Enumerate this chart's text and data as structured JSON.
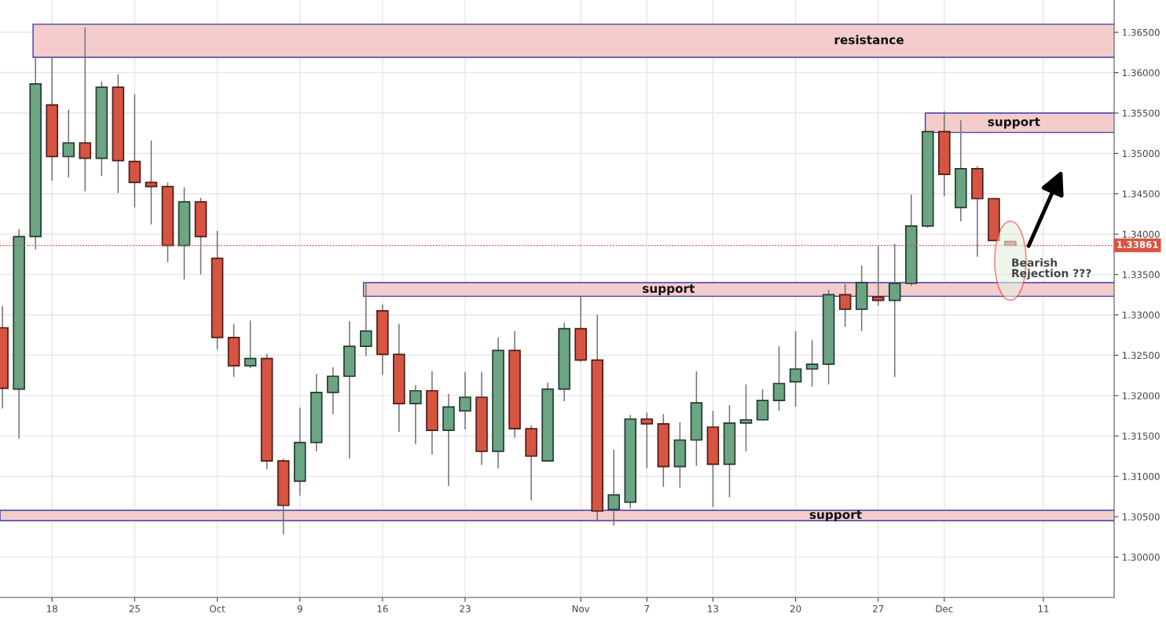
{
  "chart_data": {
    "type": "candlestick",
    "categories": [
      null,
      null,
      null,
      "18",
      null,
      null,
      null,
      null,
      "25",
      null,
      null,
      null,
      null,
      "Oct",
      null,
      null,
      null,
      null,
      "9",
      null,
      null,
      null,
      null,
      "16",
      null,
      null,
      null,
      null,
      "23",
      null,
      null,
      null,
      null,
      null,
      null,
      "Nov",
      null,
      null,
      null,
      "7",
      null,
      null,
      null,
      "13",
      null,
      null,
      null,
      null,
      "20",
      null,
      null,
      null,
      null,
      "27",
      null,
      null,
      null,
      "Dec",
      null,
      null,
      null,
      null,
      null,
      "11",
      null,
      null,
      null,
      null
    ],
    "ohlc": [
      [
        1.3284,
        1.3311,
        1.3184,
        1.3209
      ],
      [
        1.3208,
        1.3406,
        1.3147,
        1.3397
      ],
      [
        1.3397,
        1.3619,
        1.3381,
        1.3586
      ],
      [
        1.356,
        1.362,
        1.3466,
        1.3496
      ],
      [
        1.3496,
        1.3554,
        1.347,
        1.3513
      ],
      [
        1.3513,
        1.3656,
        1.3453,
        1.3494
      ],
      [
        1.3494,
        1.3589,
        1.3472,
        1.3582
      ],
      [
        1.3582,
        1.3598,
        1.3451,
        1.3491
      ],
      [
        1.349,
        1.3573,
        1.3433,
        1.3464
      ],
      [
        1.3464,
        1.3516,
        1.3412,
        1.3459
      ],
      [
        1.3459,
        1.3464,
        1.3365,
        1.3386
      ],
      [
        1.3386,
        1.3458,
        1.3344,
        1.344
      ],
      [
        1.344,
        1.3445,
        1.335,
        1.3397
      ],
      [
        1.337,
        1.3404,
        1.3257,
        1.3272
      ],
      [
        1.3272,
        1.3289,
        1.3223,
        1.3237
      ],
      [
        1.3237,
        1.3293,
        1.3234,
        1.3246
      ],
      [
        1.3246,
        1.3252,
        1.3109,
        1.3119
      ],
      [
        1.3119,
        1.3122,
        1.3028,
        1.3064
      ],
      [
        1.3094,
        1.3185,
        1.3076,
        1.3142
      ],
      [
        1.3142,
        1.3227,
        1.3131,
        1.3204
      ],
      [
        1.3204,
        1.3235,
        1.3177,
        1.3224
      ],
      [
        1.3224,
        1.3292,
        1.3122,
        1.3261
      ],
      [
        1.3261,
        1.334,
        1.3249,
        1.328
      ],
      [
        1.3305,
        1.3313,
        1.3226,
        1.3251
      ],
      [
        1.3251,
        1.3289,
        1.3155,
        1.319
      ],
      [
        1.319,
        1.3213,
        1.314,
        1.3206
      ],
      [
        1.3206,
        1.323,
        1.3127,
        1.3157
      ],
      [
        1.3157,
        1.3202,
        1.3088,
        1.3186
      ],
      [
        1.3181,
        1.3229,
        1.3158,
        1.3198
      ],
      [
        1.3198,
        1.3229,
        1.3114,
        1.3131
      ],
      [
        1.3131,
        1.3272,
        1.311,
        1.3256
      ],
      [
        1.3256,
        1.328,
        1.3148,
        1.3159
      ],
      [
        1.3159,
        1.3163,
        1.307,
        1.3125
      ],
      [
        1.3119,
        1.3216,
        1.3119,
        1.3208
      ],
      [
        1.3208,
        1.329,
        1.3193,
        1.3283
      ],
      [
        1.3283,
        1.3323,
        1.3242,
        1.3244
      ],
      [
        1.3244,
        1.33,
        1.3044,
        1.3057
      ],
      [
        1.3059,
        1.3133,
        1.3039,
        1.3077
      ],
      [
        1.3068,
        1.3176,
        1.306,
        1.3171
      ],
      [
        1.3171,
        1.3179,
        1.311,
        1.3165
      ],
      [
        1.3165,
        1.3177,
        1.3087,
        1.3112
      ],
      [
        1.3112,
        1.3167,
        1.3086,
        1.3145
      ],
      [
        1.3145,
        1.323,
        1.3113,
        1.3191
      ],
      [
        1.3161,
        1.3181,
        1.3062,
        1.3115
      ],
      [
        1.3115,
        1.3188,
        1.3074,
        1.3166
      ],
      [
        1.3166,
        1.3214,
        1.3131,
        1.317
      ],
      [
        1.317,
        1.3208,
        1.3169,
        1.3194
      ],
      [
        1.3194,
        1.3261,
        1.3181,
        1.3215
      ],
      [
        1.3217,
        1.328,
        1.3186,
        1.3233
      ],
      [
        1.3233,
        1.3269,
        1.3211,
        1.3239
      ],
      [
        1.3239,
        1.3331,
        1.3214,
        1.3325
      ],
      [
        1.3325,
        1.3338,
        1.3285,
        1.3307
      ],
      [
        1.3307,
        1.3361,
        1.328,
        1.334
      ],
      [
        1.3322,
        1.3385,
        1.3311,
        1.3318
      ],
      [
        1.3318,
        1.3388,
        1.3223,
        1.3339
      ],
      [
        1.3339,
        1.3449,
        1.3336,
        1.341
      ],
      [
        1.341,
        1.3527,
        1.3408,
        1.3527
      ],
      [
        1.3527,
        1.3552,
        1.3447,
        1.3474
      ],
      [
        1.3433,
        1.3541,
        1.3416,
        1.3481
      ],
      [
        1.3481,
        1.3484,
        1.3372,
        1.3444
      ],
      [
        1.3444,
        1.3445,
        1.3392,
        1.3392
      ],
      [
        1.3391,
        1.3391,
        1.33861,
        1.33861
      ],
      null,
      null,
      null,
      null,
      null,
      null
    ],
    "colors": [
      "#d75442",
      "#6ba583",
      "#6ba583",
      "#d75442",
      "#6ba583",
      "#d75442",
      "#6ba583",
      "#d75442",
      "#d75442",
      "#d75442",
      "#d75442",
      "#6ba583",
      "#d75442",
      "#d75442",
      "#d75442",
      "#6ba583",
      "#d75442",
      "#d75442",
      "#6ba583",
      "#6ba583",
      "#6ba583",
      "#6ba583",
      "#6ba583",
      "#d75442",
      "#d75442",
      "#6ba583",
      "#d75442",
      "#6ba583",
      "#6ba583",
      "#d75442",
      "#6ba583",
      "#d75442",
      "#d75442",
      "#6ba583",
      "#6ba583",
      "#d75442",
      "#d75442",
      "#6ba583",
      "#6ba583",
      "#d75442",
      "#d75442",
      "#6ba583",
      "#6ba583",
      "#d75442",
      "#6ba583",
      "#6ba583",
      "#6ba583",
      "#6ba583",
      "#6ba583",
      "#6ba583",
      "#6ba583",
      "#d75442",
      "#6ba583",
      "#d75442",
      "#6ba583",
      "#6ba583",
      "#6ba583",
      "#d75442",
      "#6ba583",
      "#d75442",
      "#d75442",
      "#d75442",
      null,
      null,
      null,
      null,
      null,
      null
    ],
    "ylim": [
      1.295,
      1.369
    ],
    "yticks": [
      {
        "value": 1.3,
        "label": "1.30000"
      },
      {
        "value": 1.305,
        "label": "1.30500"
      },
      {
        "value": 1.31,
        "label": "1.31000"
      },
      {
        "value": 1.315,
        "label": "1.31500"
      },
      {
        "value": 1.32,
        "label": "1.32000"
      },
      {
        "value": 1.325,
        "label": "1.32500"
      },
      {
        "value": 1.33,
        "label": "1.33000"
      },
      {
        "value": 1.335,
        "label": "1.33500"
      },
      {
        "value": 1.34,
        "label": "1.34000"
      },
      {
        "value": 1.345,
        "label": "1.34500"
      },
      {
        "value": 1.35,
        "label": "1.35000"
      },
      {
        "value": 1.355,
        "label": "1.35500"
      },
      {
        "value": 1.36,
        "label": "1.36000"
      },
      {
        "value": 1.365,
        "label": "1.36500"
      }
    ],
    "bands": [
      {
        "axis": "y",
        "from": 1.3619,
        "to": 1.366,
        "label": "resistance",
        "color": "#f4cccc"
      },
      {
        "axis": "y",
        "from": 1.3526,
        "to": 1.355,
        "label": "support",
        "color": "#f4cccc"
      },
      {
        "axis": "y",
        "from": 1.3323,
        "to": 1.334,
        "label": "support",
        "color": "#f4cccc"
      },
      {
        "axis": "y",
        "from": 1.3045,
        "to": 1.3058,
        "label": "support",
        "color": "#f4cccc"
      }
    ],
    "ref_lines": [
      {
        "axis": "y",
        "value": 1.33861,
        "label": "1.33861",
        "color": "#d75442",
        "line_style": "dotted"
      }
    ],
    "annotations": [
      "Bearish\nRejection ???"
    ],
    "grid": true
  }
}
